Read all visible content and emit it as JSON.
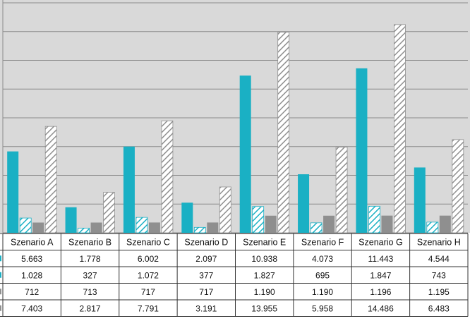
{
  "chart_data": {
    "type": "bar",
    "categories": [
      "Szenario A",
      "Szenario B",
      "Szenario C",
      "Szenario D",
      "Szenario E",
      "Szenario F",
      "Szenario G",
      "Szenario H"
    ],
    "series": [
      {
        "values": [
          5663,
          1778,
          6002,
          2097,
          10938,
          4073,
          11443,
          4544
        ],
        "color": "#1ab0c4",
        "pattern": "solid"
      },
      {
        "values": [
          1028,
          327,
          1072,
          377,
          1827,
          695,
          1847,
          743
        ],
        "color": "#1ab0c4",
        "pattern": "hatched"
      },
      {
        "values": [
          712,
          713,
          717,
          717,
          1190,
          1190,
          1196,
          1195
        ],
        "color": "#8f8f8f",
        "pattern": "solid"
      },
      {
        "values": [
          7403,
          2817,
          7791,
          3191,
          13955,
          5958,
          14486,
          6483
        ],
        "color": "#8f8f8f",
        "pattern": "hatched"
      }
    ],
    "table_rows": [
      [
        "5.663",
        "1.778",
        "6.002",
        "2.097",
        "10.938",
        "4.073",
        "11.443",
        "4.544"
      ],
      [
        "1.028",
        "327",
        "1.072",
        "377",
        "1.827",
        "695",
        "1.847",
        "743"
      ],
      [
        "712",
        "713",
        "717",
        "717",
        "1.190",
        "1.190",
        "1.196",
        "1.195"
      ],
      [
        "7.403",
        "2.817",
        "7.791",
        "3.191",
        "13.955",
        "5.958",
        "14.486",
        "6.483"
      ]
    ],
    "ylim": [
      0,
      16000
    ],
    "grid": true,
    "plot_background": "#d9d9d9"
  }
}
